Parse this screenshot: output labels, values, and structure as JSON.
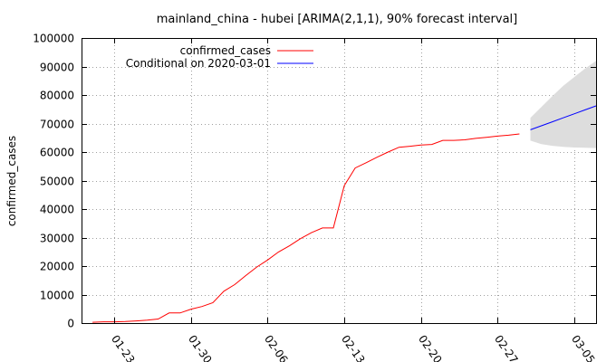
{
  "chart_data": {
    "type": "line",
    "title": "mainland_china - hubei [ARIMA(2,1,1), 90% forecast interval]",
    "xlabel": "",
    "ylabel": "confirmed_cases",
    "ylim": [
      0,
      100000
    ],
    "yticks": [
      0,
      10000,
      20000,
      30000,
      40000,
      50000,
      60000,
      70000,
      80000,
      90000,
      100000
    ],
    "xlim": [
      "2020-01-20",
      "2020-03-07"
    ],
    "xticks": [
      "01-23",
      "01-30",
      "02-06",
      "02-13",
      "02-20",
      "02-27",
      "03-05"
    ],
    "grid": true,
    "legend_position": "top-left",
    "series": [
      {
        "name": "confirmed_cases",
        "color": "#ff0000",
        "x": [
          "2020-01-21",
          "2020-01-22",
          "2020-01-23",
          "2020-01-24",
          "2020-01-25",
          "2020-01-26",
          "2020-01-27",
          "2020-01-28",
          "2020-01-29",
          "2020-01-30",
          "2020-01-31",
          "2020-02-01",
          "2020-02-02",
          "2020-02-03",
          "2020-02-04",
          "2020-02-05",
          "2020-02-06",
          "2020-02-07",
          "2020-02-08",
          "2020-02-09",
          "2020-02-10",
          "2020-02-11",
          "2020-02-12",
          "2020-02-13",
          "2020-02-14",
          "2020-02-15",
          "2020-02-16",
          "2020-02-17",
          "2020-02-18",
          "2020-02-19",
          "2020-02-20",
          "2020-02-21",
          "2020-02-22",
          "2020-02-23",
          "2020-02-24",
          "2020-02-25",
          "2020-02-26",
          "2020-02-27",
          "2020-02-28",
          "2020-02-29"
        ],
        "y": [
          270,
          444,
          444,
          549,
          761,
          1058,
          1423,
          3554,
          3554,
          4903,
          5806,
          7153,
          11177,
          13522,
          16678,
          19665,
          22112,
          24953,
          27100,
          29631,
          31728,
          33366,
          33366,
          48206,
          54406,
          56249,
          58182,
          59989,
          61682,
          62031,
          62442,
          62662,
          64084,
          64084,
          64287,
          64786,
          65187,
          65596,
          65914,
          66337
        ]
      },
      {
        "name": "Conditional on 2020-03-01",
        "color": "#0000ff",
        "x": [
          "2020-03-01",
          "2020-03-02",
          "2020-03-03",
          "2020-03-04",
          "2020-03-05",
          "2020-03-06",
          "2020-03-07"
        ],
        "y": [
          67800,
          69200,
          70600,
          72000,
          73400,
          74800,
          76200
        ]
      }
    ],
    "forecast_interval": {
      "level": "90%",
      "color": "#dddddd",
      "x": [
        "2020-03-01",
        "2020-03-02",
        "2020-03-03",
        "2020-03-04",
        "2020-03-05",
        "2020-03-06",
        "2020-03-07"
      ],
      "lower": [
        64000,
        62800,
        62200,
        61800,
        61600,
        61500,
        61400
      ],
      "upper": [
        72000,
        75800,
        79600,
        83200,
        86300,
        89300,
        92000
      ]
    }
  }
}
